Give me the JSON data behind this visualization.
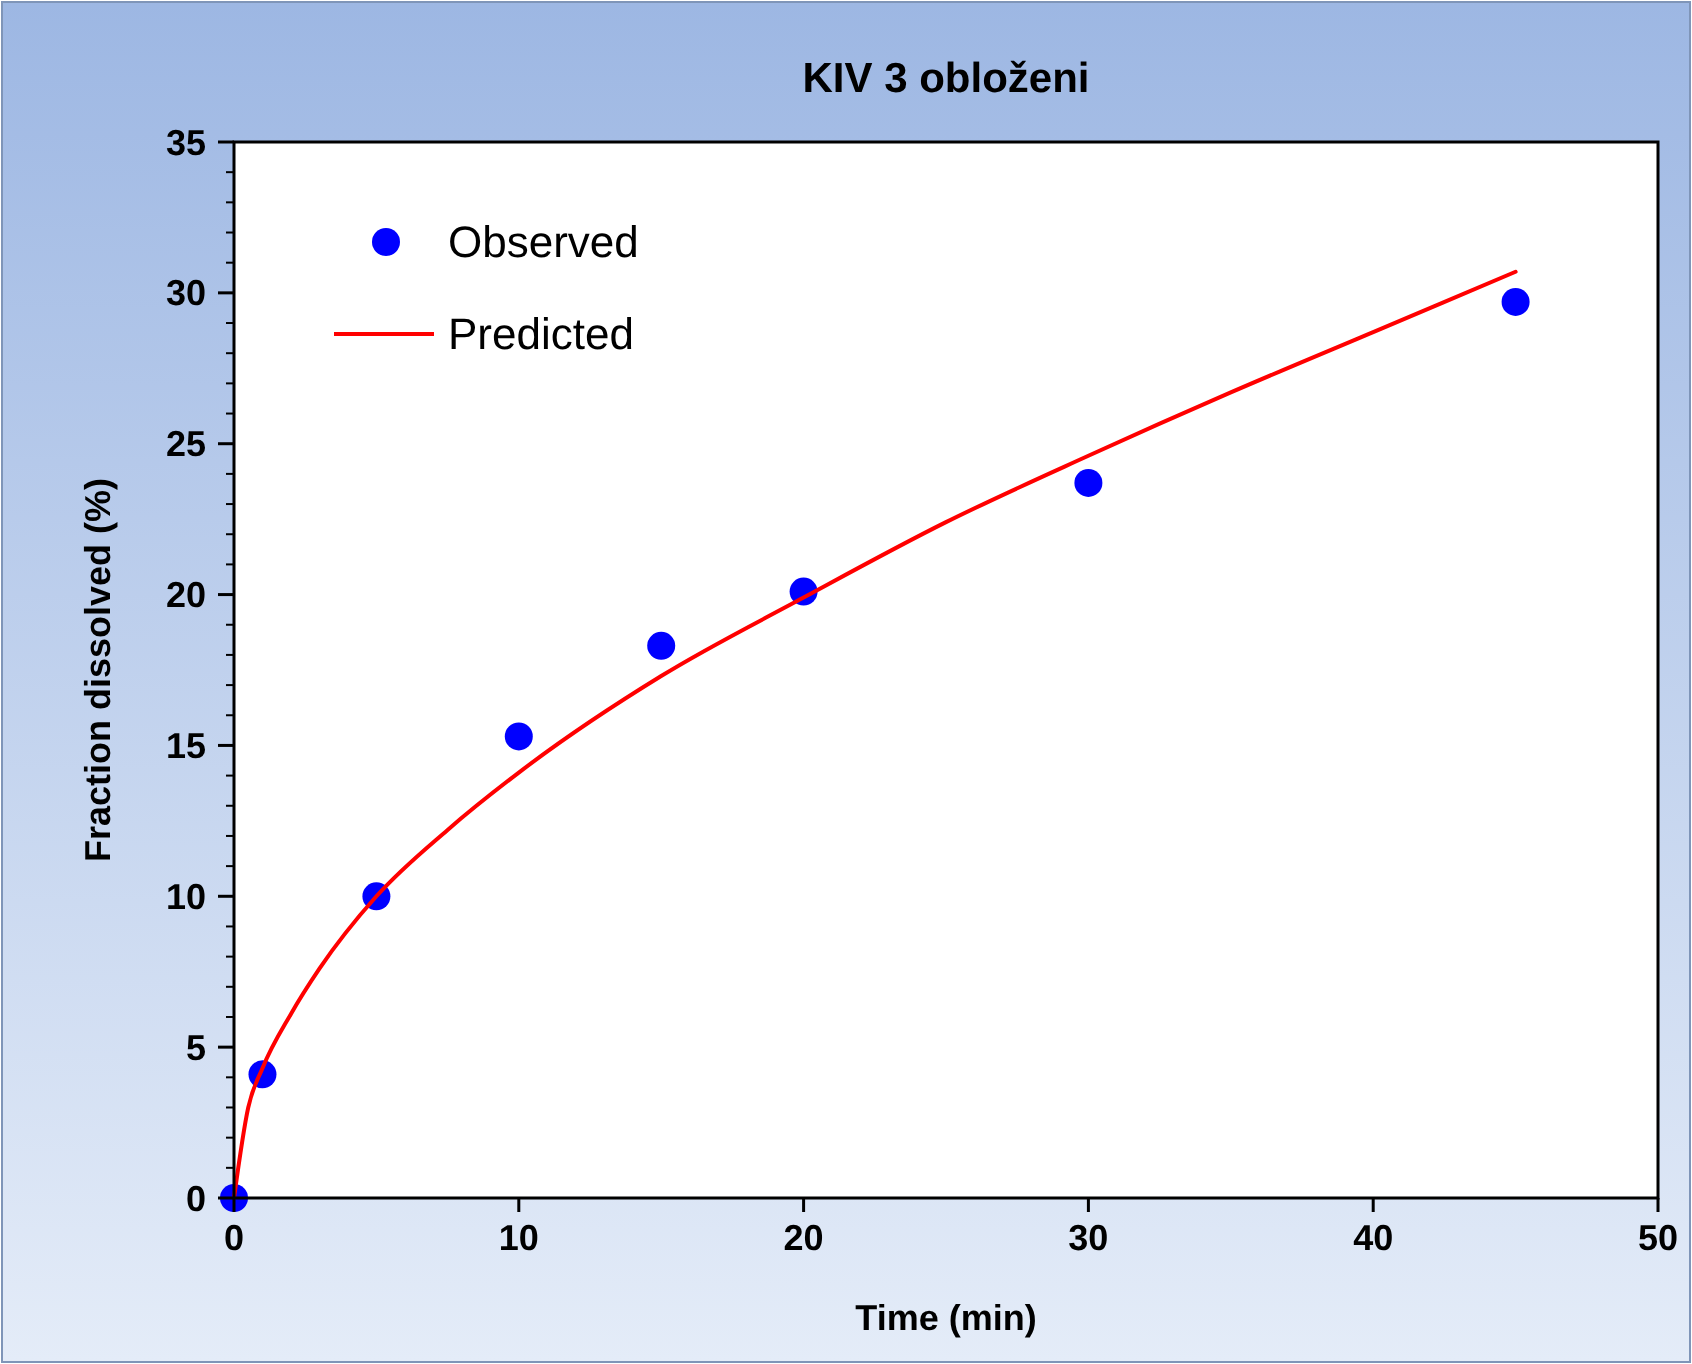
{
  "chart_data": {
    "type": "scatter",
    "title": "KIV 3 obloženi",
    "xlabel": "Time (min)",
    "ylabel": "Fraction dissolved (%)",
    "xlim": [
      0,
      50
    ],
    "xticks": [
      0,
      10,
      20,
      30,
      40,
      50
    ],
    "ylim": [
      0,
      35
    ],
    "yticks": [
      0,
      5,
      10,
      15,
      20,
      25,
      30,
      35
    ],
    "legend": "top left",
    "grid": false,
    "series": [
      {
        "name": "Observed",
        "marker": "circle",
        "color": "#0000ff",
        "x": [
          0,
          1,
          5,
          10,
          15,
          20,
          30,
          45
        ],
        "values": [
          0,
          4.1,
          10,
          15.3,
          18.3,
          20.1,
          23.7,
          29.7
        ]
      },
      {
        "name": "Predicted",
        "type": "line",
        "marker": "none",
        "line_style": "solid",
        "color": "#ff0000",
        "x": [
          0,
          0.5,
          1,
          2,
          3,
          5,
          7.5,
          10,
          15,
          20,
          25,
          30,
          35,
          40,
          45
        ],
        "values": [
          0,
          3,
          4.3,
          6.1,
          7.6,
          10,
          12.2,
          14.1,
          17.3,
          19.9,
          22.4,
          24.6,
          26.7,
          28.7,
          30.7
        ]
      }
    ]
  }
}
